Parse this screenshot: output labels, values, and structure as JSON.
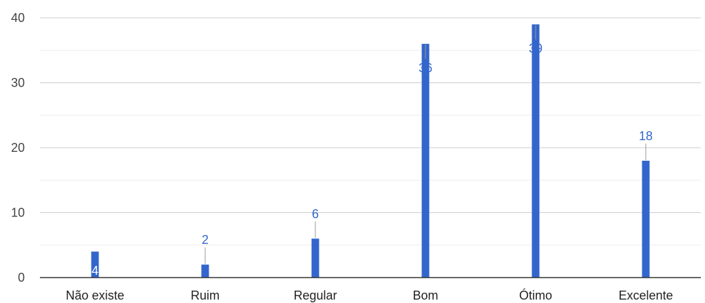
{
  "chart_data": {
    "type": "bar",
    "categories": [
      "Não existe",
      "Ruim",
      "Regular",
      "Bom",
      "Ótimo",
      "Excelente"
    ],
    "values": [
      4,
      2,
      6,
      36,
      39,
      18
    ],
    "ylim": [
      0,
      40
    ],
    "yticks": [
      0,
      10,
      20,
      30,
      40
    ],
    "grid": true,
    "minor_grid": true,
    "legend": "none",
    "colors": {
      "bar": "#3366cc",
      "grid": "#cccccc",
      "minor_grid": "#ebebeb",
      "axis": "#333333",
      "data_label": "#3366cc",
      "data_label_inside": "#ffffff",
      "leader_line": "#999999"
    }
  }
}
